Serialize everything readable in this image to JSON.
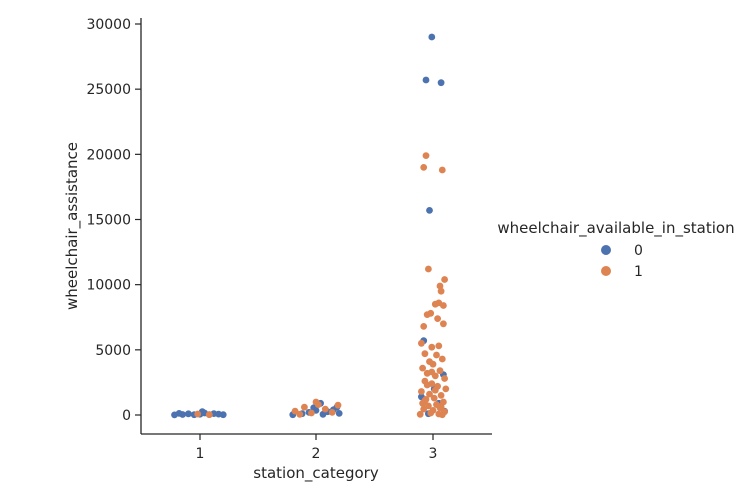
{
  "chart_data": {
    "type": "scatter",
    "xlabel": "station_category",
    "ylabel": "wheelchair_assistance",
    "categories": [
      "1",
      "2",
      "3"
    ],
    "ylim": [
      -1400,
      30600
    ],
    "yticks": [
      0,
      5000,
      10000,
      15000,
      20000,
      25000,
      30000
    ],
    "grid": false,
    "legend": {
      "title": "wheelchair_available_in_station",
      "placement": "right",
      "entries": [
        {
          "label": "0",
          "color": "#4c72b0"
        },
        {
          "label": "1",
          "color": "#dd8452"
        }
      ]
    },
    "series": [
      {
        "name": "0",
        "color": "#4c72b0",
        "points": [
          {
            "x": 1,
            "j": -0.22,
            "y": 10
          },
          {
            "x": 1,
            "j": -0.15,
            "y": 40
          },
          {
            "x": 1,
            "j": -0.1,
            "y": 90
          },
          {
            "x": 1,
            "j": -0.05,
            "y": 20
          },
          {
            "x": 1,
            "j": 0.0,
            "y": 60
          },
          {
            "x": 1,
            "j": 0.04,
            "y": 150
          },
          {
            "x": 1,
            "j": 0.08,
            "y": 30
          },
          {
            "x": 1,
            "j": 0.12,
            "y": 110
          },
          {
            "x": 1,
            "j": 0.16,
            "y": 70
          },
          {
            "x": 1,
            "j": -0.18,
            "y": 120
          },
          {
            "x": 1,
            "j": 0.2,
            "y": 20
          },
          {
            "x": 1,
            "j": 0.02,
            "y": 250
          },
          {
            "x": 2,
            "j": -0.2,
            "y": 20
          },
          {
            "x": 2,
            "j": -0.12,
            "y": 100
          },
          {
            "x": 2,
            "j": -0.06,
            "y": 200
          },
          {
            "x": 2,
            "j": 0.0,
            "y": 350
          },
          {
            "x": 2,
            "j": 0.06,
            "y": 50
          },
          {
            "x": 2,
            "j": 0.1,
            "y": 250
          },
          {
            "x": 2,
            "j": 0.15,
            "y": 400
          },
          {
            "x": 2,
            "j": 0.2,
            "y": 120
          },
          {
            "x": 2,
            "j": 0.04,
            "y": 900
          },
          {
            "x": 2,
            "j": -0.02,
            "y": 550
          },
          {
            "x": 2,
            "j": 0.18,
            "y": 600
          },
          {
            "x": 3,
            "j": -0.01,
            "y": 29000
          },
          {
            "x": 3,
            "j": -0.06,
            "y": 25700
          },
          {
            "x": 3,
            "j": 0.07,
            "y": 25500
          },
          {
            "x": 3,
            "j": -0.03,
            "y": 15700
          },
          {
            "x": 3,
            "j": -0.08,
            "y": 5700
          },
          {
            "x": 3,
            "j": 0.09,
            "y": 3100
          },
          {
            "x": 3,
            "j": 0.01,
            "y": 2000
          },
          {
            "x": 3,
            "j": -0.1,
            "y": 1400
          },
          {
            "x": 3,
            "j": 0.05,
            "y": 900
          },
          {
            "x": 3,
            "j": 0.1,
            "y": 300
          },
          {
            "x": 3,
            "j": -0.04,
            "y": 100
          },
          {
            "x": 3,
            "j": 0.06,
            "y": 600
          }
        ]
      },
      {
        "name": "1",
        "color": "#dd8452",
        "points": [
          {
            "x": 1,
            "j": 0.08,
            "y": 30
          },
          {
            "x": 1,
            "j": -0.02,
            "y": 80
          },
          {
            "x": 2,
            "j": -0.18,
            "y": 300
          },
          {
            "x": 2,
            "j": -0.1,
            "y": 600
          },
          {
            "x": 2,
            "j": -0.04,
            "y": 150
          },
          {
            "x": 2,
            "j": 0.02,
            "y": 800
          },
          {
            "x": 2,
            "j": 0.08,
            "y": 450
          },
          {
            "x": 2,
            "j": 0.14,
            "y": 200
          },
          {
            "x": 2,
            "j": 0.19,
            "y": 750
          },
          {
            "x": 2,
            "j": -0.14,
            "y": 50
          },
          {
            "x": 2,
            "j": 0.0,
            "y": 1000
          },
          {
            "x": 3,
            "j": -0.06,
            "y": 19900
          },
          {
            "x": 3,
            "j": -0.08,
            "y": 19000
          },
          {
            "x": 3,
            "j": 0.08,
            "y": 18800
          },
          {
            "x": 3,
            "j": -0.04,
            "y": 11200
          },
          {
            "x": 3,
            "j": 0.1,
            "y": 10400
          },
          {
            "x": 3,
            "j": 0.06,
            "y": 9900
          },
          {
            "x": 3,
            "j": 0.07,
            "y": 9500
          },
          {
            "x": 3,
            "j": 0.05,
            "y": 8600
          },
          {
            "x": 3,
            "j": 0.02,
            "y": 8500
          },
          {
            "x": 3,
            "j": 0.09,
            "y": 8400
          },
          {
            "x": 3,
            "j": -0.02,
            "y": 7800
          },
          {
            "x": 3,
            "j": -0.05,
            "y": 7700
          },
          {
            "x": 3,
            "j": 0.04,
            "y": 7400
          },
          {
            "x": 3,
            "j": 0.09,
            "y": 7000
          },
          {
            "x": 3,
            "j": -0.08,
            "y": 6800
          },
          {
            "x": 3,
            "j": -0.1,
            "y": 5500
          },
          {
            "x": 3,
            "j": 0.05,
            "y": 5300
          },
          {
            "x": 3,
            "j": -0.01,
            "y": 5200
          },
          {
            "x": 3,
            "j": -0.07,
            "y": 4700
          },
          {
            "x": 3,
            "j": 0.03,
            "y": 4600
          },
          {
            "x": 3,
            "j": 0.08,
            "y": 4300
          },
          {
            "x": 3,
            "j": -0.03,
            "y": 4100
          },
          {
            "x": 3,
            "j": 0.0,
            "y": 3900
          },
          {
            "x": 3,
            "j": -0.09,
            "y": 3600
          },
          {
            "x": 3,
            "j": 0.06,
            "y": 3400
          },
          {
            "x": 3,
            "j": -0.05,
            "y": 3200
          },
          {
            "x": 3,
            "j": 0.02,
            "y": 3000
          },
          {
            "x": 3,
            "j": 0.1,
            "y": 2800
          },
          {
            "x": 3,
            "j": -0.07,
            "y": 2600
          },
          {
            "x": 3,
            "j": -0.01,
            "y": 2400
          },
          {
            "x": 3,
            "j": 0.04,
            "y": 2200
          },
          {
            "x": 3,
            "j": 0.11,
            "y": 2000
          },
          {
            "x": 3,
            "j": -0.1,
            "y": 1800
          },
          {
            "x": 3,
            "j": -0.03,
            "y": 1600
          },
          {
            "x": 3,
            "j": 0.07,
            "y": 1500
          },
          {
            "x": 3,
            "j": 0.01,
            "y": 1300
          },
          {
            "x": 3,
            "j": -0.06,
            "y": 1200
          },
          {
            "x": 3,
            "j": 0.09,
            "y": 1000
          },
          {
            "x": 3,
            "j": -0.09,
            "y": 900
          },
          {
            "x": 3,
            "j": 0.03,
            "y": 800
          },
          {
            "x": 3,
            "j": -0.04,
            "y": 700
          },
          {
            "x": 3,
            "j": 0.06,
            "y": 550
          },
          {
            "x": 3,
            "j": -0.08,
            "y": 450
          },
          {
            "x": 3,
            "j": 0.0,
            "y": 350
          },
          {
            "x": 3,
            "j": 0.1,
            "y": 250
          },
          {
            "x": 3,
            "j": -0.02,
            "y": 150
          },
          {
            "x": 3,
            "j": 0.05,
            "y": 80
          },
          {
            "x": 3,
            "j": -0.11,
            "y": 50
          },
          {
            "x": 3,
            "j": 0.08,
            "y": 20
          },
          {
            "x": 3,
            "j": -0.05,
            "y": 2300
          },
          {
            "x": 3,
            "j": 0.02,
            "y": 1900
          },
          {
            "x": 3,
            "j": -0.07,
            "y": 1100
          },
          {
            "x": 3,
            "j": 0.07,
            "y": 650
          },
          {
            "x": 3,
            "j": -0.01,
            "y": 3300
          }
        ]
      }
    ]
  }
}
